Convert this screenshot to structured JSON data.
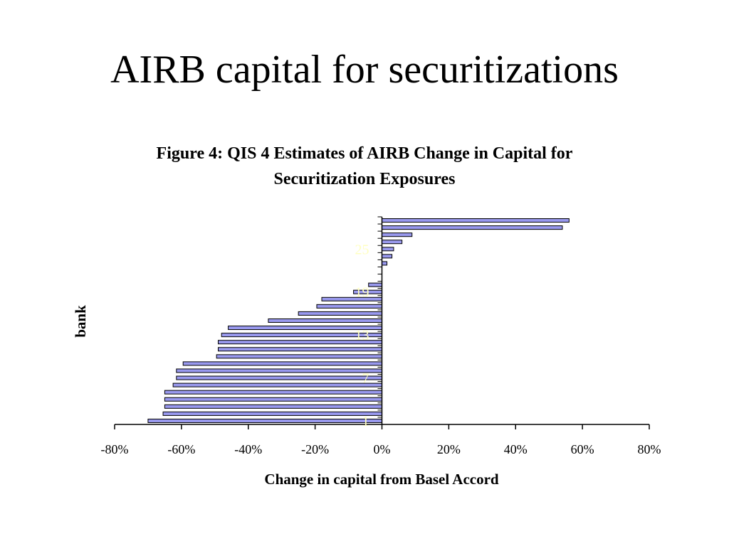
{
  "slide": {
    "title": "AIRB capital for securitizations"
  },
  "chart_data": {
    "type": "bar",
    "orientation": "horizontal",
    "title": "Figure 4: QIS 4 Estimates of AIRB Change in Capital for Securitization Exposures",
    "xlabel": "Change in capital from Basel Accord",
    "ylabel": "bank",
    "xlim": [
      -0.8,
      0.8
    ],
    "x_ticks": [
      "-80%",
      "-60%",
      "-40%",
      "-20%",
      "0%",
      "20%",
      "40%",
      "60%",
      "80%"
    ],
    "y_tick_labels": [
      "1",
      "7",
      "13",
      "19",
      "25"
    ],
    "y_tick_label_color": "#ffffc0",
    "bar_fill": "#9999ee",
    "bar_stroke": "#000000",
    "grid": false,
    "categories": [
      "1",
      "2",
      "3",
      "4",
      "5",
      "6",
      "7",
      "8",
      "9",
      "10",
      "11",
      "12",
      "13",
      "14",
      "15",
      "16",
      "17",
      "18",
      "19",
      "20",
      "21",
      "22",
      "23",
      "24",
      "25",
      "26",
      "27",
      "28",
      "29"
    ],
    "values": [
      -0.7,
      -0.655,
      -0.65,
      -0.65,
      -0.65,
      -0.625,
      -0.615,
      -0.615,
      -0.595,
      -0.495,
      -0.49,
      -0.49,
      -0.48,
      -0.46,
      -0.34,
      -0.25,
      -0.195,
      -0.18,
      -0.085,
      -0.04,
      0.0,
      0.0,
      0.015,
      0.03,
      0.035,
      0.06,
      0.09,
      0.54,
      0.56
    ]
  }
}
